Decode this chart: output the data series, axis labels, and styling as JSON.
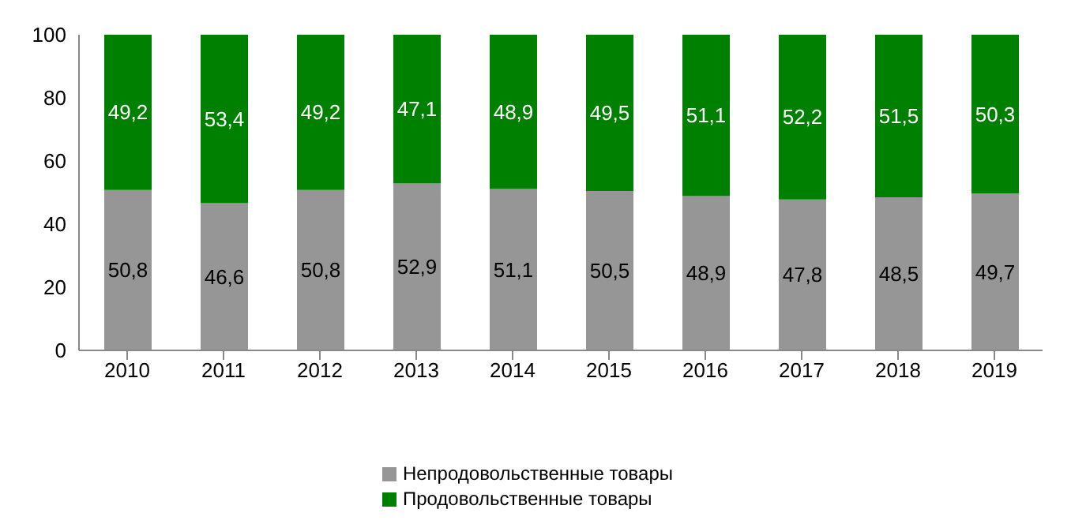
{
  "chart_data": {
    "type": "bar",
    "stacked": true,
    "categories": [
      "2010",
      "2011",
      "2012",
      "2013",
      "2014",
      "2015",
      "2016",
      "2017",
      "2018",
      "2019"
    ],
    "series": [
      {
        "name": "Непродовольственные товары",
        "color": "#969696",
        "values": [
          50.8,
          46.6,
          50.8,
          52.9,
          51.1,
          50.5,
          48.9,
          47.8,
          48.5,
          49.7
        ],
        "value_labels": [
          "50,8",
          "46,6",
          "50,8",
          "52,9",
          "51,1",
          "50,5",
          "48,9",
          "47,8",
          "48,5",
          "49,7"
        ]
      },
      {
        "name": "Продовольственные товары",
        "color": "#008000",
        "values": [
          49.2,
          53.4,
          49.2,
          47.1,
          48.9,
          49.5,
          51.1,
          52.2,
          51.5,
          50.3
        ],
        "value_labels": [
          "49,2",
          "53,4",
          "49,2",
          "47,1",
          "48,9",
          "49,5",
          "51,1",
          "52,2",
          "51,5",
          "50,3"
        ]
      }
    ],
    "ylim": [
      0,
      100
    ],
    "yticks": [
      0,
      20,
      40,
      60,
      80,
      100
    ],
    "grid": false,
    "legend": "bottom"
  }
}
